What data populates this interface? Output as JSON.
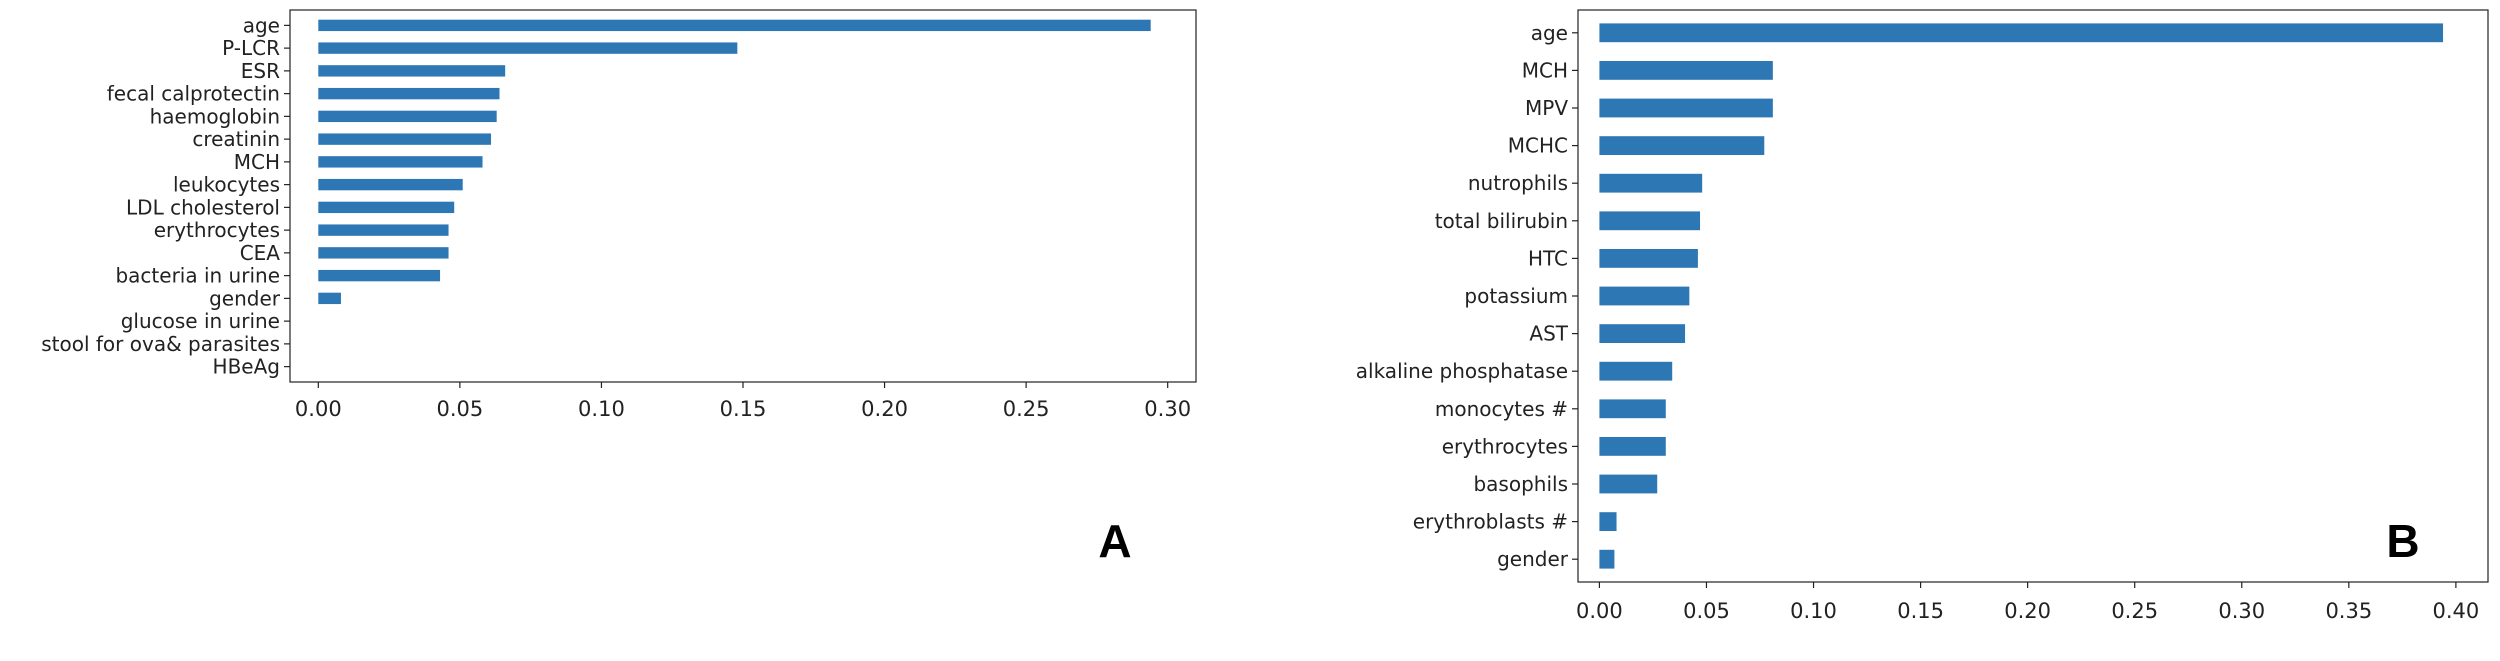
{
  "chart_data": [
    {
      "type": "bar",
      "orientation": "horizontal",
      "panel_label": "A",
      "color": "#2d77b5",
      "categories": [
        "age",
        "P-LCR",
        "ESR",
        "fecal calprotectin",
        "haemoglobin",
        "creatinin",
        "MCH",
        "leukocytes",
        "LDL cholesterol",
        "erythrocytes",
        "CEA",
        "bacteria in urine",
        "gender",
        "glucose in urine",
        "stool for ova& parasites",
        "HBeAg"
      ],
      "values": [
        0.294,
        0.148,
        0.066,
        0.064,
        0.063,
        0.061,
        0.058,
        0.051,
        0.048,
        0.046,
        0.046,
        0.043,
        0.008,
        0.0,
        0.0,
        0.0
      ],
      "xlim": [
        -0.01,
        0.31
      ],
      "xticks": [
        0.0,
        0.05,
        0.1,
        0.15,
        0.2,
        0.25,
        0.3
      ],
      "xtick_labels": [
        "0.00",
        "0.05",
        "0.10",
        "0.15",
        "0.20",
        "0.25",
        "0.30"
      ],
      "grid": false
    },
    {
      "type": "bar",
      "orientation": "horizontal",
      "panel_label": "B",
      "color": "#2d77b5",
      "categories": [
        "age",
        "MCH",
        "MPV",
        "MCHC",
        "nutrophils",
        "total bilirubin",
        "HTC",
        "potassium",
        "AST",
        "alkaline phosphatase",
        "monocytes #",
        "erythrocytes",
        "basophils",
        "erythroblasts #",
        "gender"
      ],
      "values": [
        0.394,
        0.081,
        0.081,
        0.077,
        0.048,
        0.047,
        0.046,
        0.042,
        0.04,
        0.034,
        0.031,
        0.031,
        0.027,
        0.008,
        0.007
      ],
      "xlim": [
        -0.01,
        0.415
      ],
      "xticks": [
        0.0,
        0.05,
        0.1,
        0.15,
        0.2,
        0.25,
        0.3,
        0.35,
        0.4
      ],
      "xtick_labels": [
        "0.00",
        "0.05",
        "0.10",
        "0.15",
        "0.20",
        "0.25",
        "0.30",
        "0.35",
        "0.40"
      ],
      "grid": false
    }
  ]
}
